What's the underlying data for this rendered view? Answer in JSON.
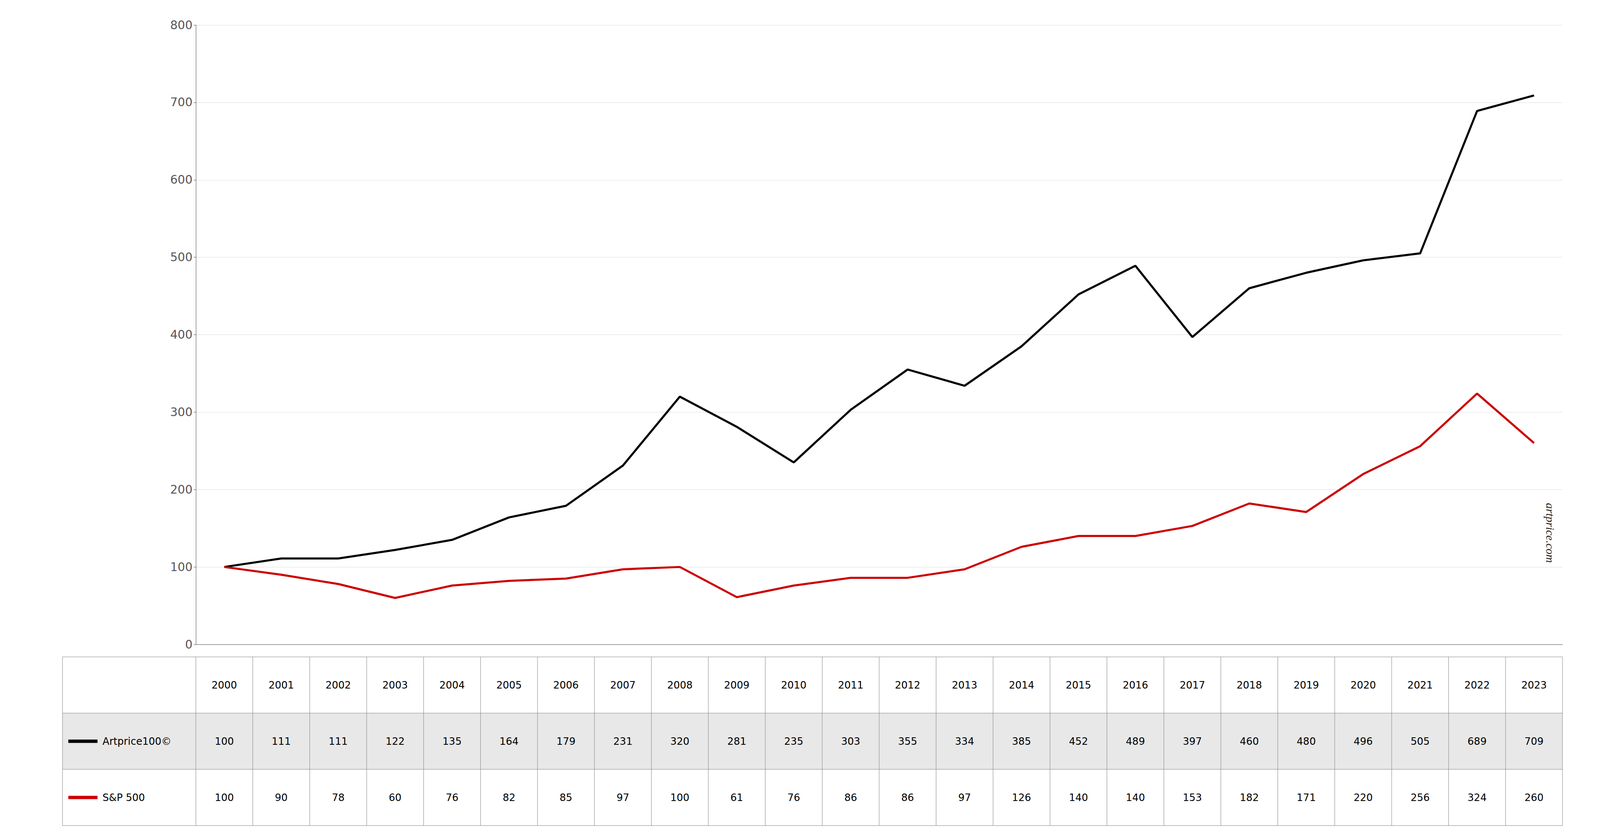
{
  "chart_data": {
    "type": "line",
    "categories": [
      2000,
      2001,
      2002,
      2003,
      2004,
      2005,
      2006,
      2007,
      2008,
      2009,
      2010,
      2011,
      2012,
      2013,
      2014,
      2015,
      2016,
      2017,
      2018,
      2019,
      2020,
      2021,
      2022,
      2023
    ],
    "series": [
      {
        "name": "Artprice100©",
        "color": "#000000",
        "values": [
          100,
          111,
          111,
          122,
          135,
          164,
          179,
          231,
          320,
          281,
          235,
          303,
          355,
          334,
          385,
          452,
          489,
          397,
          460,
          480,
          496,
          505,
          689,
          709
        ]
      },
      {
        "name": "S&P 500",
        "color": "#cc0000",
        "values": [
          100,
          90,
          78,
          60,
          76,
          82,
          85,
          97,
          100,
          61,
          76,
          86,
          86,
          97,
          126,
          140,
          140,
          153,
          182,
          171,
          220,
          256,
          324,
          260
        ]
      }
    ],
    "ylim": [
      0,
      800
    ],
    "yticks": [
      0,
      100,
      200,
      300,
      400,
      500,
      600,
      700,
      800
    ],
    "grid": true,
    "annotations": [
      {
        "text": "artprice.com"
      }
    ]
  }
}
